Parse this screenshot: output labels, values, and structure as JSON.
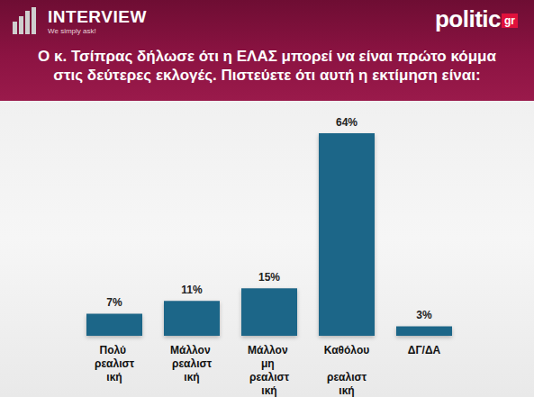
{
  "chart_data": {
    "type": "bar",
    "title": "Ο κ. Τσίπρας δήλωσε ότι η ΕΛΑΣ μπορεί να είναι πρώτο κόμμα στις δεύτερες εκλογές. Πιστεύετε ότι αυτή η εκτίμηση είναι:",
    "annotations": [
      "INTERVIEW",
      "We simply ask!",
      "politic",
      "gr"
    ],
    "categories": [
      "Πολύ ρεαλιστική",
      "Μάλλον ρεαλιστική",
      "Μάλλον μη ρεαλιστική",
      "Καθόλου ρεαλιστική",
      "ΔΓ/ΔΑ"
    ],
    "values": [
      7,
      11,
      15,
      64,
      3
    ],
    "value_labels": [
      "7%",
      "11%",
      "15%",
      "64%",
      "3%"
    ],
    "color": "#1f6688",
    "data_labels": true,
    "tick_labels": "x",
    "grid": false
  }
}
